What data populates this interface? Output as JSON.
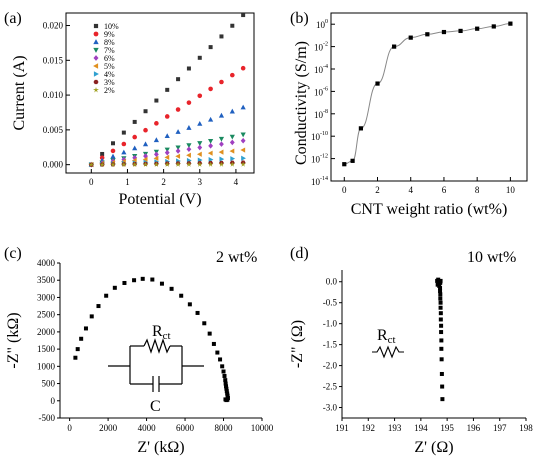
{
  "panels": {
    "a": {
      "label": "(a)"
    },
    "b": {
      "label": "(b)"
    },
    "c": {
      "label": "(c)",
      "note": "2 wt%"
    },
    "d": {
      "label": "(d)",
      "note": "10 wt%"
    }
  },
  "circuit": {
    "rct_main": "R",
    "rct_sub": "ct",
    "cap_label": "C",
    "d_rct_main": "R",
    "d_rct_sub": "ct"
  },
  "colors": {
    "10%": "#333333",
    "9%": "#e8242b",
    "8%": "#2060c0",
    "7%": "#1a8a60",
    "6%": "#a040c0",
    "5%": "#e09020",
    "4%": "#30a0d0",
    "3%": "#8a2020",
    "2%": "#a0a020"
  },
  "chart_data": [
    {
      "panel": "a",
      "type": "scatter",
      "xlabel": "Potential (V)",
      "ylabel": "Current (A)",
      "xlim": [
        -0.7,
        4.5
      ],
      "ylim": [
        -0.0012,
        0.0218
      ],
      "xticks": [
        "0",
        "1",
        "2",
        "3",
        "4"
      ],
      "yticks": [
        "0.000",
        "0.005",
        "0.010",
        "0.015",
        "0.020"
      ],
      "x": [
        0,
        0.3,
        0.6,
        0.9,
        1.2,
        1.5,
        1.8,
        2.1,
        2.4,
        2.7,
        3.0,
        3.3,
        3.6,
        3.9,
        4.2
      ],
      "legend_position": "top-left",
      "series": [
        {
          "name": "10%",
          "marker": "square",
          "slope": 0.00512
        },
        {
          "name": "9%",
          "marker": "circle",
          "slope": 0.0033
        },
        {
          "name": "8%",
          "marker": "triangle-up",
          "slope": 0.00196
        },
        {
          "name": "7%",
          "marker": "triangle-down",
          "slope": 0.00103
        },
        {
          "name": "6%",
          "marker": "diamond",
          "slope": 0.00082
        },
        {
          "name": "5%",
          "marker": "triangle-left",
          "slope": 0.0005
        },
        {
          "name": "4%",
          "marker": "triangle-right",
          "slope": 0.00022
        },
        {
          "name": "3%",
          "marker": "hexagon",
          "slope": 7e-05
        },
        {
          "name": "2%",
          "marker": "star",
          "slope": 1e-05
        }
      ]
    },
    {
      "panel": "b",
      "type": "line",
      "xlabel": "CNT weight ratio (wt%)",
      "ylabel": "Conductivity (S/m)",
      "xlim": [
        -0.8,
        11
      ],
      "ylim_log10": [
        -14,
        1
      ],
      "scale_y": "log",
      "xticks": [
        "0",
        "2",
        "4",
        "6",
        "8",
        "10"
      ],
      "yticks": [
        "10^-14",
        "10^-12",
        "10^-10",
        "10^-8",
        "10^-6",
        "10^-4",
        "10^-2",
        "10^0"
      ],
      "x": [
        0,
        0.5,
        1,
        2,
        3,
        4,
        5,
        6,
        7,
        8,
        9,
        10
      ],
      "log10_y": [
        -12.5,
        -12.2,
        -9.3,
        -5.3,
        -2.0,
        -1.2,
        -0.9,
        -0.7,
        -0.6,
        -0.4,
        -0.2,
        0.05
      ]
    },
    {
      "panel": "c",
      "type": "scatter",
      "xlabel": "Z' (kΩ)",
      "ylabel": "-Z\" (kΩ)",
      "xlim": [
        -500,
        10000
      ],
      "ylim": [
        -500,
        4000
      ],
      "xticks": [
        "0",
        "2000",
        "4000",
        "6000",
        "8000",
        "10000"
      ],
      "yticks": [
        "-500",
        "0",
        "500",
        "1000",
        "1500",
        "2000",
        "2500",
        "3000",
        "3500",
        "4000"
      ],
      "x": [
        300,
        420,
        600,
        850,
        1150,
        1500,
        1900,
        2350,
        2850,
        3350,
        3800,
        4300,
        4800,
        5300,
        5800,
        6250,
        6650,
        7000,
        7280,
        7500,
        7680,
        7820,
        7930,
        8000,
        8050,
        8090,
        8110,
        8130,
        8150,
        8170,
        8190,
        8210,
        8230,
        8100,
        8150,
        8200
      ],
      "y": [
        1250,
        1500,
        1800,
        2100,
        2450,
        2750,
        3050,
        3280,
        3420,
        3500,
        3540,
        3520,
        3400,
        3250,
        3050,
        2800,
        2550,
        2250,
        1950,
        1650,
        1400,
        1200,
        1000,
        850,
        720,
        600,
        500,
        420,
        350,
        280,
        210,
        150,
        80,
        40,
        20,
        30
      ]
    },
    {
      "panel": "d",
      "type": "scatter",
      "xlabel": "Z' (Ω)",
      "ylabel": "-Z\" (Ω)",
      "xlim": [
        191,
        198
      ],
      "ylim": [
        -3.25,
        0.28
      ],
      "xticks": [
        "191",
        "192",
        "193",
        "194",
        "195",
        "196",
        "197",
        "198"
      ],
      "yticks": [
        "0.0",
        "-0.5",
        "-1.0",
        "-1.5",
        "-2.0",
        "-2.5",
        "-3.0"
      ],
      "x": [
        194.62,
        194.66,
        194.7,
        194.74,
        194.68,
        194.72,
        194.75,
        194.64,
        194.7,
        194.73,
        194.73,
        194.74,
        194.74,
        194.75,
        194.75,
        194.76,
        194.76,
        194.77,
        194.77,
        194.78,
        194.78,
        194.79,
        194.8,
        194.81,
        194.82
      ],
      "y": [
        0.02,
        0.05,
        0.0,
        -0.02,
        -0.05,
        -0.03,
        0.02,
        -0.07,
        -0.1,
        -0.15,
        -0.22,
        -0.3,
        -0.4,
        -0.5,
        -0.62,
        -0.75,
        -0.9,
        -1.05,
        -1.2,
        -1.4,
        -1.6,
        -1.85,
        -2.2,
        -2.5,
        -2.8
      ]
    }
  ]
}
